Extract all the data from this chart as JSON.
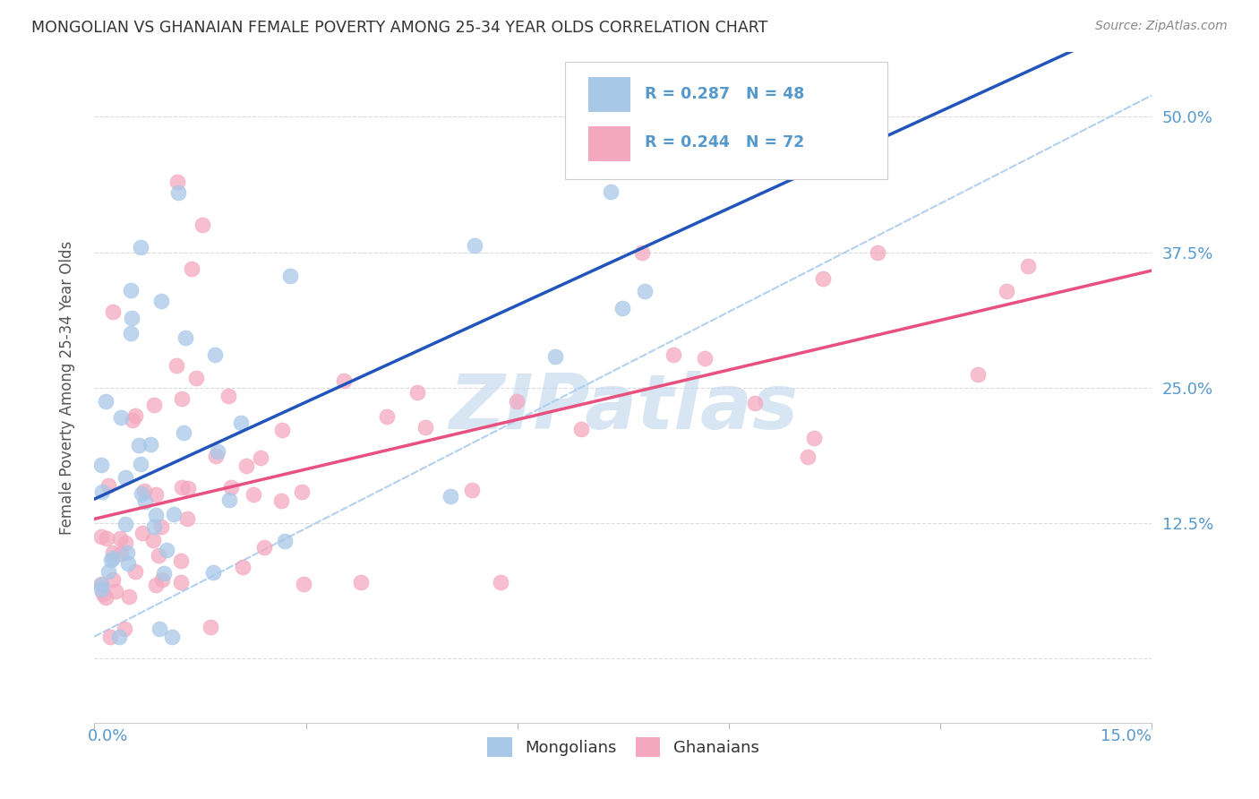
{
  "title": "MONGOLIAN VS GHANAIAN FEMALE POVERTY AMONG 25-34 YEAR OLDS CORRELATION CHART",
  "source": "Source: ZipAtlas.com",
  "ylabel": "Female Poverty Among 25-34 Year Olds",
  "mongolian_R": 0.287,
  "mongolian_N": 48,
  "ghanaian_R": 0.244,
  "ghanaian_N": 72,
  "mongolian_scatter_color": "#A8C8E8",
  "ghanaian_scatter_color": "#F4A8C0",
  "mongolian_line_color": "#2255BB",
  "ghanaian_line_color": "#E85080",
  "diagonal_line_color": "#AACCEE",
  "background_color": "#FFFFFF",
  "title_color": "#333333",
  "source_color": "#888888",
  "right_axis_color": "#5599CC",
  "xlim": [
    0.0,
    0.15
  ],
  "ylim": [
    -0.06,
    0.56
  ],
  "yticks": [
    0.0,
    0.125,
    0.25,
    0.375,
    0.5
  ],
  "ytick_labels": [
    "",
    "12.5%",
    "25.0%",
    "37.5%",
    "50.0%"
  ],
  "xticks": [
    0.0,
    0.03,
    0.06,
    0.09,
    0.12,
    0.15
  ],
  "legend_mongolian_label": "Mongolians",
  "legend_ghanaian_label": "Ghanaians",
  "legend_R_color": "#5599CC",
  "watermark_text": "ZIPatlas",
  "watermark_color": "#C8DCF0"
}
